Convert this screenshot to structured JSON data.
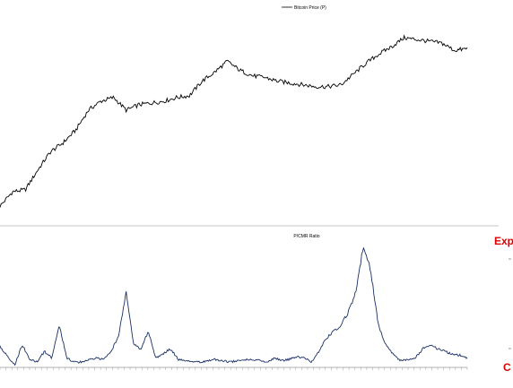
{
  "chart_data": [
    {
      "type": "line",
      "legend": "Bitcoin Price (P)",
      "legend_position": "top-center",
      "grid": false,
      "y_scale": "log",
      "line_color": "#000000",
      "series": [
        {
          "name": "Bitcoin Price (P)",
          "values": [
            0.0,
            0.08,
            0.09,
            0.2,
            0.3,
            0.35,
            0.42,
            0.53,
            0.58,
            0.6,
            0.53,
            0.56,
            0.57,
            0.58,
            0.6,
            0.61,
            0.69,
            0.74,
            0.8,
            0.75,
            0.72,
            0.71,
            0.69,
            0.68,
            0.67,
            0.66,
            0.66,
            0.67,
            0.73,
            0.79,
            0.84,
            0.88,
            0.93,
            0.92,
            0.91,
            0.9,
            0.86,
            0.87
          ]
        }
      ]
    },
    {
      "type": "line",
      "legend": "P/CMR Ratio",
      "legend_position": "top-center",
      "grid": false,
      "line_color": "#1a2f66",
      "series": [
        {
          "name": "P/CMR Ratio",
          "values": [
            0.14,
            0.06,
            0.0,
            0.15,
            0.04,
            0.02,
            0.1,
            0.05,
            0.3,
            0.05,
            0.02,
            0.02,
            0.04,
            0.05,
            0.04,
            0.1,
            0.22,
            0.55,
            0.15,
            0.12,
            0.25,
            0.05,
            0.08,
            0.12,
            0.04,
            0.03,
            0.02,
            0.02,
            0.03,
            0.04,
            0.03,
            0.02,
            0.03,
            0.04,
            0.04,
            0.03,
            0.02,
            0.05,
            0.03,
            0.04,
            0.06,
            0.05,
            0.02,
            0.1,
            0.2,
            0.25,
            0.3,
            0.4,
            0.55,
            0.9,
            0.7,
            0.3,
            0.15,
            0.08,
            0.03,
            0.04,
            0.05,
            0.12,
            0.15,
            0.12,
            0.1,
            0.08,
            0.07,
            0.05
          ]
        }
      ],
      "side_labels": {
        "top": "Exp",
        "bottom": "C",
        "color": "#dd0000"
      },
      "x_tick_count": 80
    }
  ]
}
